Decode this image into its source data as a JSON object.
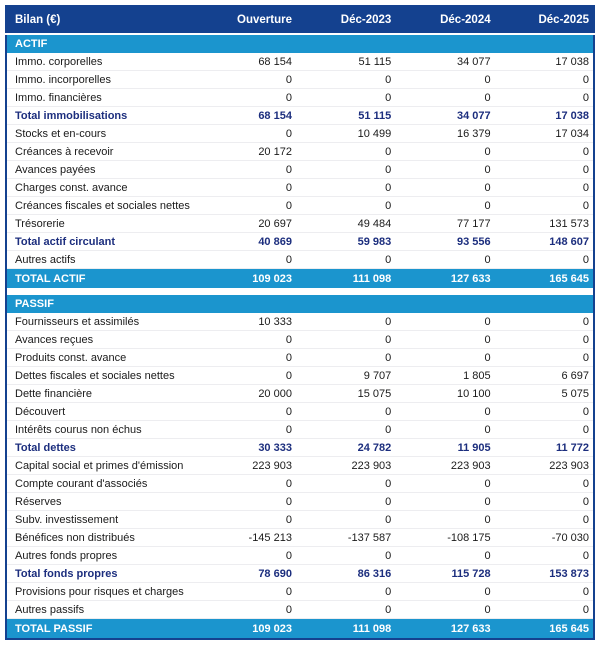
{
  "colors": {
    "header_background": "#14418F",
    "band_background": "#1B95CE",
    "header_text": "#FFFFFF",
    "body_text": "#1A1A1A",
    "subtotal_text": "#1C2E7E",
    "row_divider": "#EDEDF0",
    "outer_border": "#14418F",
    "page_background": "#FFFFFF"
  },
  "table": {
    "header": {
      "label": "Bilan (€)",
      "columns": [
        "Ouverture",
        "Déc-2023",
        "Déc-2024",
        "Déc-2025"
      ]
    },
    "sections": [
      {
        "title": "ACTIF",
        "rows": [
          {
            "label": "Immo. corporelles",
            "values": [
              "68 154",
              "51 115",
              "34 077",
              "17 038"
            ],
            "style": "normal"
          },
          {
            "label": "Immo. incorporelles",
            "values": [
              "0",
              "0",
              "0",
              "0"
            ],
            "style": "normal"
          },
          {
            "label": "Immo. financières",
            "values": [
              "0",
              "0",
              "0",
              "0"
            ],
            "style": "normal"
          },
          {
            "label": "Total immobilisations",
            "values": [
              "68 154",
              "51 115",
              "34 077",
              "17 038"
            ],
            "style": "subtotal"
          },
          {
            "label": "Stocks et en-cours",
            "values": [
              "0",
              "10 499",
              "16 379",
              "17 034"
            ],
            "style": "normal"
          },
          {
            "label": "Créances à recevoir",
            "values": [
              "20 172",
              "0",
              "0",
              "0"
            ],
            "style": "normal"
          },
          {
            "label": "Avances payées",
            "values": [
              "0",
              "0",
              "0",
              "0"
            ],
            "style": "normal"
          },
          {
            "label": "Charges const. avance",
            "values": [
              "0",
              "0",
              "0",
              "0"
            ],
            "style": "normal"
          },
          {
            "label": "Créances fiscales et sociales nettes",
            "values": [
              "0",
              "0",
              "0",
              "0"
            ],
            "style": "normal"
          },
          {
            "label": "Trésorerie",
            "values": [
              "20 697",
              "49 484",
              "77 177",
              "131 573"
            ],
            "style": "normal"
          },
          {
            "label": "Total actif circulant",
            "values": [
              "40 869",
              "59 983",
              "93 556",
              "148 607"
            ],
            "style": "subtotal"
          },
          {
            "label": "Autres actifs",
            "values": [
              "0",
              "0",
              "0",
              "0"
            ],
            "style": "normal"
          }
        ],
        "total": {
          "label": "TOTAL ACTIF",
          "values": [
            "109 023",
            "111 098",
            "127 633",
            "165 645"
          ]
        }
      },
      {
        "title": "PASSIF",
        "rows": [
          {
            "label": "Fournisseurs et assimilés",
            "values": [
              "10 333",
              "0",
              "0",
              "0"
            ],
            "style": "normal"
          },
          {
            "label": "Avances reçues",
            "values": [
              "0",
              "0",
              "0",
              "0"
            ],
            "style": "normal"
          },
          {
            "label": "Produits const. avance",
            "values": [
              "0",
              "0",
              "0",
              "0"
            ],
            "style": "normal"
          },
          {
            "label": "Dettes fiscales et sociales nettes",
            "values": [
              "0",
              "9 707",
              "1 805",
              "6 697"
            ],
            "style": "normal"
          },
          {
            "label": "Dette financière",
            "values": [
              "20 000",
              "15 075",
              "10 100",
              "5 075"
            ],
            "style": "normal"
          },
          {
            "label": "Découvert",
            "values": [
              "0",
              "0",
              "0",
              "0"
            ],
            "style": "normal"
          },
          {
            "label": "Intérêts courus non échus",
            "values": [
              "0",
              "0",
              "0",
              "0"
            ],
            "style": "normal"
          },
          {
            "label": "Total dettes",
            "values": [
              "30 333",
              "24 782",
              "11 905",
              "11 772"
            ],
            "style": "subtotal"
          },
          {
            "label": "Capital social et primes d'émission",
            "values": [
              "223 903",
              "223 903",
              "223 903",
              "223 903"
            ],
            "style": "normal"
          },
          {
            "label": "Compte courant d'associés",
            "values": [
              "0",
              "0",
              "0",
              "0"
            ],
            "style": "normal"
          },
          {
            "label": "Réserves",
            "values": [
              "0",
              "0",
              "0",
              "0"
            ],
            "style": "normal"
          },
          {
            "label": "Subv. investissement",
            "values": [
              "0",
              "0",
              "0",
              "0"
            ],
            "style": "normal"
          },
          {
            "label": "Bénéfices non distribués",
            "values": [
              "-145 213",
              "-137 587",
              "-108 175",
              "-70 030"
            ],
            "style": "normal"
          },
          {
            "label": "Autres fonds propres",
            "values": [
              "0",
              "0",
              "0",
              "0"
            ],
            "style": "normal"
          },
          {
            "label": "Total fonds propres",
            "values": [
              "78 690",
              "86 316",
              "115 728",
              "153 873"
            ],
            "style": "subtotal"
          },
          {
            "label": "Provisions pour risques et charges",
            "values": [
              "0",
              "0",
              "0",
              "0"
            ],
            "style": "normal"
          },
          {
            "label": "Autres passifs",
            "values": [
              "0",
              "0",
              "0",
              "0"
            ],
            "style": "normal"
          }
        ],
        "total": {
          "label": "TOTAL PASSIF",
          "values": [
            "109 023",
            "111 098",
            "127 633",
            "165 645"
          ]
        }
      }
    ]
  }
}
